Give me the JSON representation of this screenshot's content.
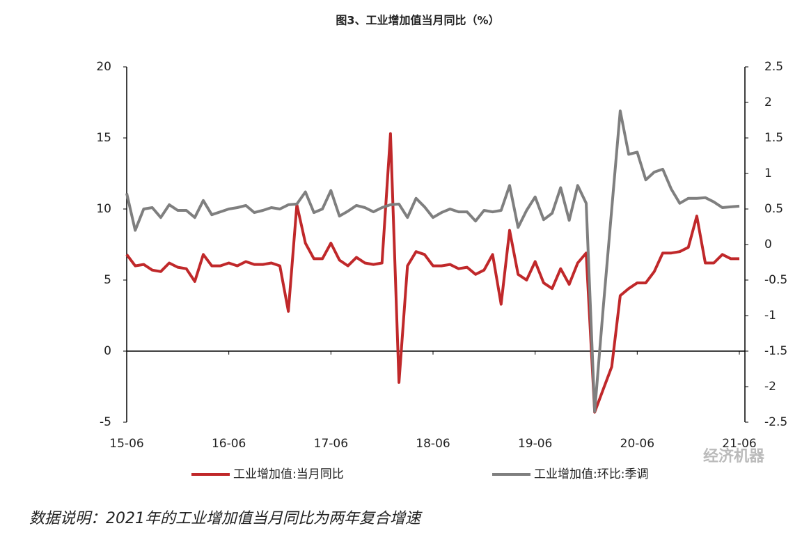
{
  "chart_data": {
    "type": "line",
    "title": "图3、工业增加值当月同比（%）",
    "categories": [
      "15-06",
      null,
      null,
      null,
      null,
      null,
      null,
      null,
      null,
      null,
      null,
      null,
      "16-06",
      null,
      null,
      null,
      null,
      null,
      null,
      null,
      null,
      null,
      null,
      null,
      "17-06",
      null,
      null,
      null,
      null,
      null,
      null,
      null,
      null,
      null,
      null,
      null,
      "18-06",
      null,
      null,
      null,
      null,
      null,
      null,
      null,
      null,
      null,
      null,
      null,
      "19-06",
      null,
      null,
      null,
      null,
      null,
      null,
      null,
      null,
      null,
      null,
      null,
      "20-06",
      null,
      null,
      null,
      null,
      null,
      null,
      null,
      null,
      null,
      null,
      null,
      "21-06"
    ],
    "series": [
      {
        "name": "工业增加值:当月同比",
        "color": "#c0282a",
        "axis": "y",
        "values": [
          6.8,
          6.0,
          6.1,
          5.7,
          5.6,
          6.2,
          5.9,
          5.8,
          4.9,
          6.8,
          6.0,
          6.0,
          6.2,
          6.0,
          6.3,
          6.1,
          6.1,
          6.2,
          6.0,
          2.8,
          10.3,
          7.6,
          6.5,
          6.5,
          7.6,
          6.4,
          6.0,
          6.6,
          6.2,
          6.1,
          6.2,
          15.3,
          -2.2,
          6.0,
          7.0,
          6.8,
          6.0,
          6.0,
          6.1,
          5.8,
          5.9,
          5.4,
          5.7,
          6.8,
          3.3,
          8.5,
          5.4,
          5.0,
          6.3,
          4.8,
          4.4,
          5.8,
          4.7,
          6.2,
          6.9,
          -4.3,
          -2.7,
          -1.1,
          3.9,
          4.4,
          4.8,
          4.8,
          5.6,
          6.9,
          6.9,
          7.0,
          7.3,
          9.5,
          6.2,
          6.2,
          6.8,
          6.5,
          6.5
        ]
      },
      {
        "name": "工业增加值:环比:季调",
        "color": "#7f7f7f",
        "axis": "y2",
        "values": [
          0.72,
          0.2,
          0.5,
          0.52,
          0.38,
          0.56,
          0.48,
          0.48,
          0.38,
          0.62,
          0.42,
          0.46,
          0.5,
          0.52,
          0.55,
          0.45,
          0.48,
          0.52,
          0.5,
          0.56,
          0.57,
          0.74,
          0.45,
          0.5,
          0.76,
          0.4,
          0.47,
          0.55,
          0.52,
          0.46,
          0.52,
          0.56,
          0.57,
          0.38,
          0.65,
          0.53,
          0.38,
          0.45,
          0.5,
          0.46,
          0.46,
          0.33,
          0.48,
          0.46,
          0.48,
          0.83,
          0.24,
          0.48,
          0.67,
          0.35,
          0.44,
          0.8,
          0.34,
          0.83,
          0.58,
          -2.35,
          -0.9,
          0.5,
          1.88,
          1.27,
          1.3,
          0.91,
          1.02,
          1.06,
          0.78,
          0.58,
          0.65,
          0.65,
          0.66,
          0.6,
          0.52,
          0.53,
          0.54
        ]
      }
    ],
    "ylim": [
      -5,
      20
    ],
    "yticks": [
      -5,
      0,
      5,
      10,
      15,
      20
    ],
    "y2lim": [
      -2.5,
      2.5
    ],
    "y2ticks": [
      -2.5,
      -2,
      -1.5,
      -1,
      -0.5,
      0,
      0.5,
      1,
      1.5,
      2,
      2.5
    ],
    "grid": false,
    "legend": "bottom",
    "watermark": "经济机器",
    "footnote": "数据说明：2021年的工业增加值当月同比为两年复合增速"
  }
}
